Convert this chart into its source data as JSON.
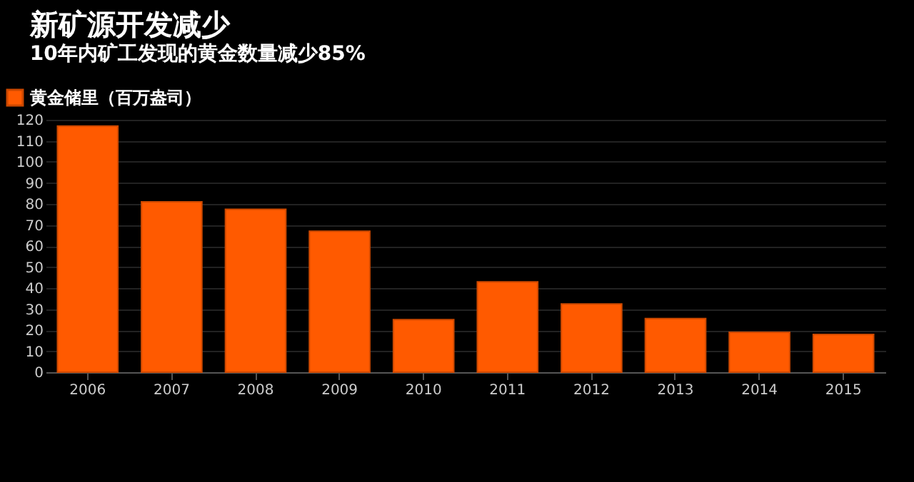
{
  "chart_data": {
    "type": "bar",
    "title": "新矿源开发减少",
    "subtitle": "10年内矿工发现的黄金数量减少85%",
    "categories": [
      "2006",
      "2007",
      "2008",
      "2009",
      "2010",
      "2011",
      "2012",
      "2013",
      "2014",
      "2015"
    ],
    "series": [
      {
        "name": "黄金储里（百万盎司）",
        "color": "#ff5a00",
        "values": [
          117,
          81,
          77.5,
          67,
          25,
          43,
          32.5,
          25.5,
          19,
          18
        ]
      }
    ],
    "ylim": [
      0,
      120
    ],
    "yticks": [
      0,
      10,
      20,
      30,
      40,
      50,
      60,
      70,
      80,
      90,
      100,
      110,
      120
    ],
    "grid": "y",
    "legend": "top left"
  }
}
